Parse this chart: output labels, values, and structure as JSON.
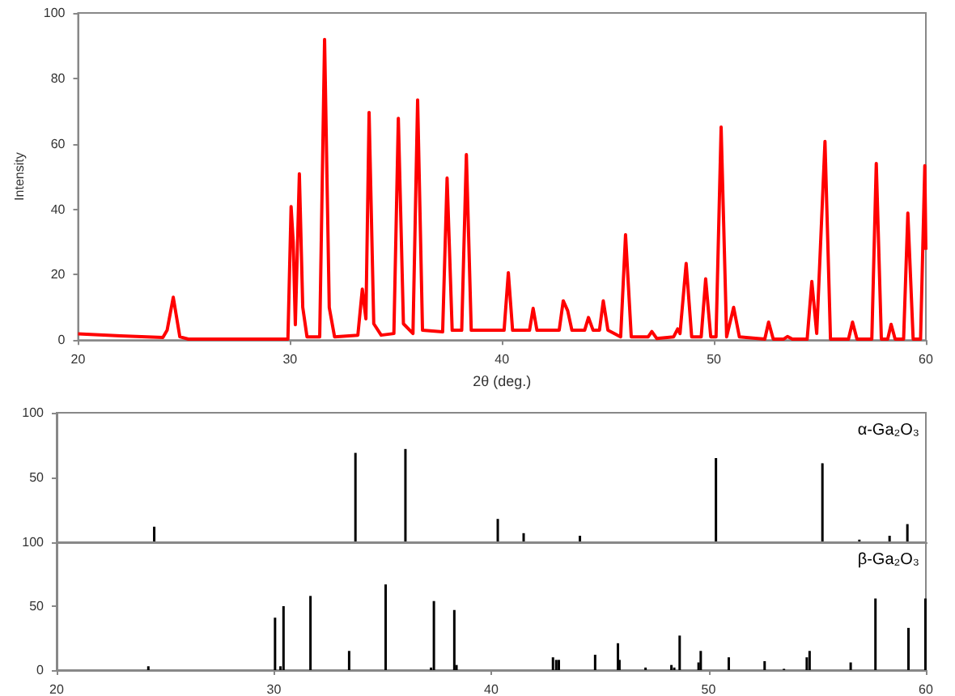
{
  "chart_data": [
    {
      "type": "line",
      "xlabel": "2θ (deg.)",
      "ylabel": "Intensity",
      "xlim": [
        20,
        60
      ],
      "xticks": [
        20,
        30,
        40,
        50,
        60
      ],
      "ylim": [
        0,
        100
      ],
      "yticks": [
        0,
        20,
        40,
        60,
        80,
        100
      ],
      "grid": false,
      "series": [
        {
          "color": "#ff0000",
          "x": [
            20,
            22,
            24,
            24.2,
            24.49,
            24.8,
            25.2,
            29.9,
            30.05,
            30.15,
            30.25,
            30.44,
            30.6,
            30.8,
            31.4,
            31.63,
            31.85,
            32.1,
            33.2,
            33.41,
            33.58,
            33.73,
            33.95,
            34.3,
            34.9,
            35.11,
            35.35,
            35.8,
            36.02,
            36.25,
            37.2,
            37.41,
            37.65,
            38.1,
            38.32,
            38.55,
            40.1,
            40.3,
            40.5,
            41.3,
            41.47,
            41.65,
            42.7,
            42.89,
            43.1,
            43.3,
            43.9,
            44.08,
            44.3,
            44.6,
            44.78,
            45,
            45.6,
            45.83,
            46.1,
            46.9,
            47.07,
            47.3,
            48.1,
            48.29,
            48.4,
            48.69,
            48.95,
            49.4,
            49.61,
            49.85,
            50.1,
            50.34,
            50.6,
            50.93,
            51.2,
            52.4,
            52.58,
            52.8,
            53.3,
            53.47,
            53.7,
            54.4,
            54.62,
            54.85,
            55.24,
            55.5,
            56.35,
            56.54,
            56.75,
            57.45,
            57.66,
            57.9,
            58.2,
            58.36,
            58.55,
            58.95,
            59.15,
            59.4,
            59.75,
            59.95,
            60
          ],
          "values": [
            1.9,
            1.3,
            0.8,
            3,
            13.1,
            1,
            0.3,
            0.3,
            40.8,
            30,
            4.7,
            50.8,
            10,
            1,
            1,
            91.9,
            10,
            1,
            1.5,
            15.6,
            6.5,
            69.6,
            5,
            1.5,
            2,
            67.8,
            5,
            2,
            73.4,
            3,
            2.5,
            49.5,
            3,
            3,
            56.7,
            3,
            3,
            20.6,
            3,
            3,
            9.7,
            3,
            3,
            12,
            9,
            3,
            3,
            6.9,
            3,
            3,
            12,
            3,
            1,
            32.2,
            1,
            1,
            2.6,
            0.5,
            1,
            3.4,
            2,
            23.4,
            1,
            1,
            18.7,
            1,
            1,
            65.1,
            1,
            10,
            1,
            0.3,
            5.5,
            0.3,
            0.3,
            1.1,
            0.3,
            0.3,
            17.9,
            2,
            60.7,
            0.3,
            0.3,
            5.5,
            0.3,
            0.3,
            54,
            0.3,
            0.3,
            4.8,
            0.3,
            0.3,
            38.8,
            0.3,
            0.3,
            53.3,
            27.6
          ]
        }
      ]
    },
    {
      "type": "bar",
      "xlim": [
        20,
        60
      ],
      "xticks": [
        20,
        30,
        40,
        50,
        60
      ],
      "ylim": [
        0,
        100
      ],
      "yticks": [
        {
          "value": 0,
          "label": null
        },
        50,
        100
      ],
      "tick_labels": "y",
      "grid": false,
      "legend": "top right",
      "series": [
        {
          "name": "α-Ga₂O₃",
          "color": "#000000",
          "x": [
            24.49,
            33.75,
            36.05,
            40.3,
            41.49,
            44.08,
            50.34,
            55.24,
            56.94,
            58.33,
            59.15
          ],
          "values": [
            12,
            69,
            72,
            18,
            7,
            5,
            65,
            61,
            2,
            5,
            14
          ]
        }
      ]
    },
    {
      "type": "bar",
      "xlim": [
        20,
        60
      ],
      "xticks": [
        20,
        30,
        40,
        50,
        60
      ],
      "ylim": [
        0,
        100
      ],
      "yticks": [
        0,
        50,
        100
      ],
      "grid": false,
      "legend": "top right",
      "series": [
        {
          "name": "β-Ga₂O₃",
          "color": "#000000",
          "x": [
            24.22,
            30.05,
            30.3,
            30.44,
            31.68,
            33.46,
            35.14,
            37.23,
            37.36,
            38.3,
            38.4,
            42.84,
            42.99,
            43.11,
            44.78,
            45.83,
            45.9,
            47.1,
            48.29,
            48.42,
            48.67,
            49.54,
            49.64,
            50.93,
            52.58,
            53.47,
            54.52,
            54.65,
            56.54,
            57.68,
            59.2,
            59.98
          ],
          "values": [
            3,
            41,
            3,
            50,
            58,
            15,
            67,
            2,
            54,
            47,
            4,
            10,
            8,
            8,
            12,
            21,
            8,
            2,
            4,
            2,
            27,
            6,
            15,
            10,
            7,
            1,
            10,
            15,
            6,
            56,
            33,
            56
          ]
        }
      ]
    }
  ]
}
